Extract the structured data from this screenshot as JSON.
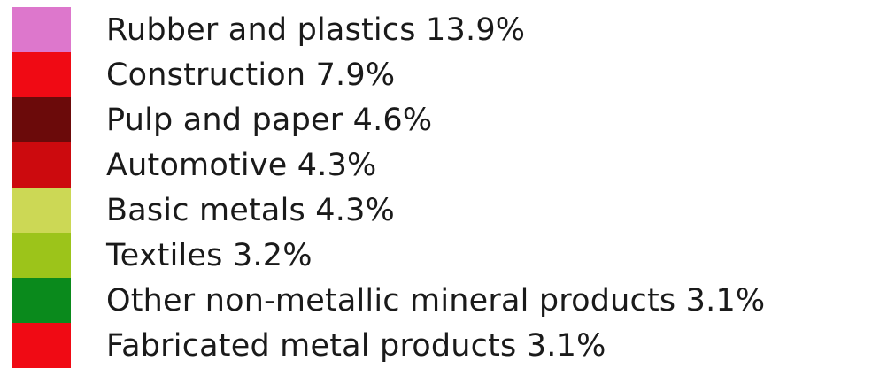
{
  "chart_data": {
    "type": "pie",
    "legend_placement": "left",
    "entries": [
      {
        "label": "Rubber and plastics 13.9%",
        "name": "Rubber and plastics",
        "value": 13.9,
        "color": "#dd77cc"
      },
      {
        "label": "Construction 7.9%",
        "name": "Construction",
        "value": 7.9,
        "color": "#f00a14"
      },
      {
        "label": "Pulp and paper 4.6%",
        "name": "Pulp and paper",
        "value": 4.6,
        "color": "#6b0a0a"
      },
      {
        "label": "Automotive 4.3%",
        "name": "Automotive",
        "value": 4.3,
        "color": "#cc0a0e"
      },
      {
        "label": "Basic metals 4.3%",
        "name": "Basic metals",
        "value": 4.3,
        "color": "#ccd855"
      },
      {
        "label": "Textiles 3.2%",
        "name": "Textiles",
        "value": 3.2,
        "color": "#9cc41a"
      },
      {
        "label": "Other non-metallic mineral products 3.1%",
        "name": "Other non-metallic mineral products",
        "value": 3.1,
        "color": "#0a8a1c"
      },
      {
        "label": "Fabricated metal products 3.1%",
        "name": "Fabricated metal products",
        "value": 3.1,
        "color": "#f00a14"
      }
    ]
  }
}
